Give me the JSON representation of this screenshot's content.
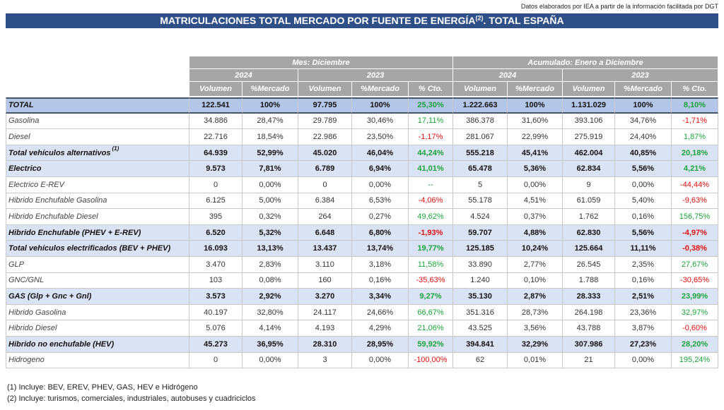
{
  "header": {
    "source": "Datos elaborados por IEA a partir de la información facilitada por DGT",
    "title": {
      "main": "MATRICULACIONES TOTAL MERCADO POR FUENTE DE ENERGÍA",
      "sup": "(2)",
      "rest": ". TOTAL ESPAÑA"
    }
  },
  "table": {
    "groups": [
      "Mes: Diciembre",
      "Acumulado: Enero a Diciembre"
    ],
    "years": [
      "2024",
      "2023",
      "2024",
      "2023"
    ],
    "columns": [
      "Volumen",
      "%Mercado",
      "Volumen",
      "%Mercado",
      "% Cto.",
      "Volumen",
      "%Mercado",
      "Volumen",
      "%Mercado",
      "% Cto."
    ],
    "rows": [
      {
        "label": "TOTAL",
        "cells": [
          "122.541",
          "100%",
          "97.795",
          "100%",
          "25,30%",
          "1.222.663",
          "100%",
          "1.131.029",
          "100%",
          "8,10%"
        ]
      },
      {
        "label": "Gasolina",
        "cells": [
          "34.886",
          "28,47%",
          "29.789",
          "30,46%",
          "17,11%",
          "386.378",
          "31,60%",
          "393.106",
          "34,76%",
          "-1,71%"
        ]
      },
      {
        "label": "Diesel",
        "cells": [
          "22.716",
          "18,54%",
          "22.986",
          "23,50%",
          "-1,17%",
          "281.067",
          "22,99%",
          "275.919",
          "24,40%",
          "1,87%"
        ]
      },
      {
        "label": "Total vehículos alternativos",
        "note": "(1)",
        "cells": [
          "64.939",
          "52,99%",
          "45.020",
          "46,04%",
          "44,24%",
          "555.218",
          "45,41%",
          "462.004",
          "40,85%",
          "20,18%"
        ]
      },
      {
        "label": "Electrico",
        "cells": [
          "9.573",
          "7,81%",
          "6.789",
          "6,94%",
          "41,01%",
          "65.478",
          "5,36%",
          "62.834",
          "5,56%",
          "4,21%"
        ]
      },
      {
        "label": "Electrico E-REV",
        "cells": [
          "0",
          "0,00%",
          "0",
          "0,00%",
          "--",
          "5",
          "0,00%",
          "9",
          "0,00%",
          "-44,44%"
        ]
      },
      {
        "label": "Hibrido Enchufable Gasolina",
        "cells": [
          "6.125",
          "5,00%",
          "6.384",
          "6,53%",
          "-4,06%",
          "55.178",
          "4,51%",
          "61.059",
          "5,40%",
          "-9,63%"
        ]
      },
      {
        "label": "Hibrido Enchufable Diesel",
        "cells": [
          "395",
          "0,32%",
          "264",
          "0,27%",
          "49,62%",
          "4.524",
          "0,37%",
          "1.762",
          "0,16%",
          "156,75%"
        ]
      },
      {
        "label": "Hibrido Enchufable (PHEV + E-REV)",
        "cells": [
          "6.520",
          "5,32%",
          "6.648",
          "6,80%",
          "-1,93%",
          "59.707",
          "4,88%",
          "62.830",
          "5,56%",
          "-4,97%"
        ]
      },
      {
        "label": "Total vehículos electrificados (BEV + PHEV)",
        "cells": [
          "16.093",
          "13,13%",
          "13.437",
          "13,74%",
          "19,77%",
          "125.185",
          "10,24%",
          "125.664",
          "11,11%",
          "-0,38%"
        ]
      },
      {
        "label": "GLP",
        "cells": [
          "3.470",
          "2,83%",
          "3.110",
          "3,18%",
          "11,58%",
          "33.890",
          "2,77%",
          "26.545",
          "2,35%",
          "27,67%"
        ]
      },
      {
        "label": "GNC/GNL",
        "cells": [
          "103",
          "0,08%",
          "160",
          "0,16%",
          "-35,63%",
          "1.240",
          "0,10%",
          "1.788",
          "0,16%",
          "-30,65%"
        ]
      },
      {
        "label": "GAS (Glp + Gnc + Gnl)",
        "cells": [
          "3.573",
          "2,92%",
          "3.270",
          "3,34%",
          "9,27%",
          "35.130",
          "2,87%",
          "28.333",
          "2,51%",
          "23,99%"
        ]
      },
      {
        "label": "Hibrido Gasolina",
        "cells": [
          "40.197",
          "32,80%",
          "24.117",
          "24,66%",
          "66,67%",
          "351.316",
          "28,73%",
          "264.198",
          "23,36%",
          "32,97%"
        ]
      },
      {
        "label": "Hibrido Diesel",
        "cells": [
          "5.076",
          "4,14%",
          "4.193",
          "4,29%",
          "21,06%",
          "43.525",
          "3,56%",
          "43.788",
          "3,87%",
          "-0,60%"
        ]
      },
      {
        "label": "Hibrido no enchufable (HEV)",
        "cells": [
          "45.273",
          "36,95%",
          "28.310",
          "28,95%",
          "59,92%",
          "394.841",
          "32,29%",
          "307.986",
          "27,23%",
          "28,20%"
        ]
      },
      {
        "label": "Hidrogeno",
        "cells": [
          "0",
          "0,00%",
          "3",
          "0,00%",
          "-100,00%",
          "62",
          "0,01%",
          "21",
          "0,00%",
          "195,24%"
        ]
      }
    ]
  },
  "footnotes": [
    "(1) Incluye: BEV, EREV, PHEV, GAS, HEV e Hidrógeno",
    "(2) Incluye: turismos, comerciales, industriales, autobuses y cuadriciclos"
  ]
}
